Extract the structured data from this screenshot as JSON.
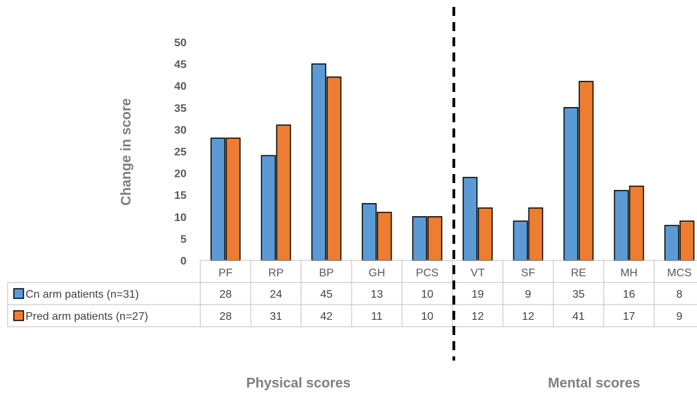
{
  "chart_data": {
    "type": "bar",
    "categories": [
      "PF",
      "RP",
      "BP",
      "GH",
      "PCS",
      "VT",
      "SF",
      "RE",
      "MH",
      "MCS"
    ],
    "series": [
      {
        "name": "Cn arm patients (n=31)",
        "values": [
          28,
          24,
          45,
          13,
          10,
          19,
          9,
          35,
          16,
          8
        ],
        "color": "#5b9bd5"
      },
      {
        "name": "Pred arm patients (n=27)",
        "values": [
          28,
          31,
          42,
          11,
          10,
          12,
          12,
          41,
          17,
          9
        ],
        "color": "#ed7d31"
      }
    ],
    "ylabel": "Change in score",
    "ylim": [
      0,
      50
    ],
    "yticks": [
      0,
      5,
      10,
      15,
      20,
      25,
      30,
      35,
      40,
      45,
      50
    ],
    "grid": false,
    "legend": "data-table",
    "groups": [
      {
        "label": "Physical scores",
        "categories": [
          "PF",
          "RP",
          "BP",
          "GH",
          "PCS"
        ]
      },
      {
        "label": "Mental scores",
        "categories": [
          "VT",
          "SF",
          "RE",
          "MH",
          "MCS"
        ]
      }
    ],
    "divider": {
      "style": "dashed",
      "between": [
        "PCS",
        "VT"
      ]
    }
  }
}
